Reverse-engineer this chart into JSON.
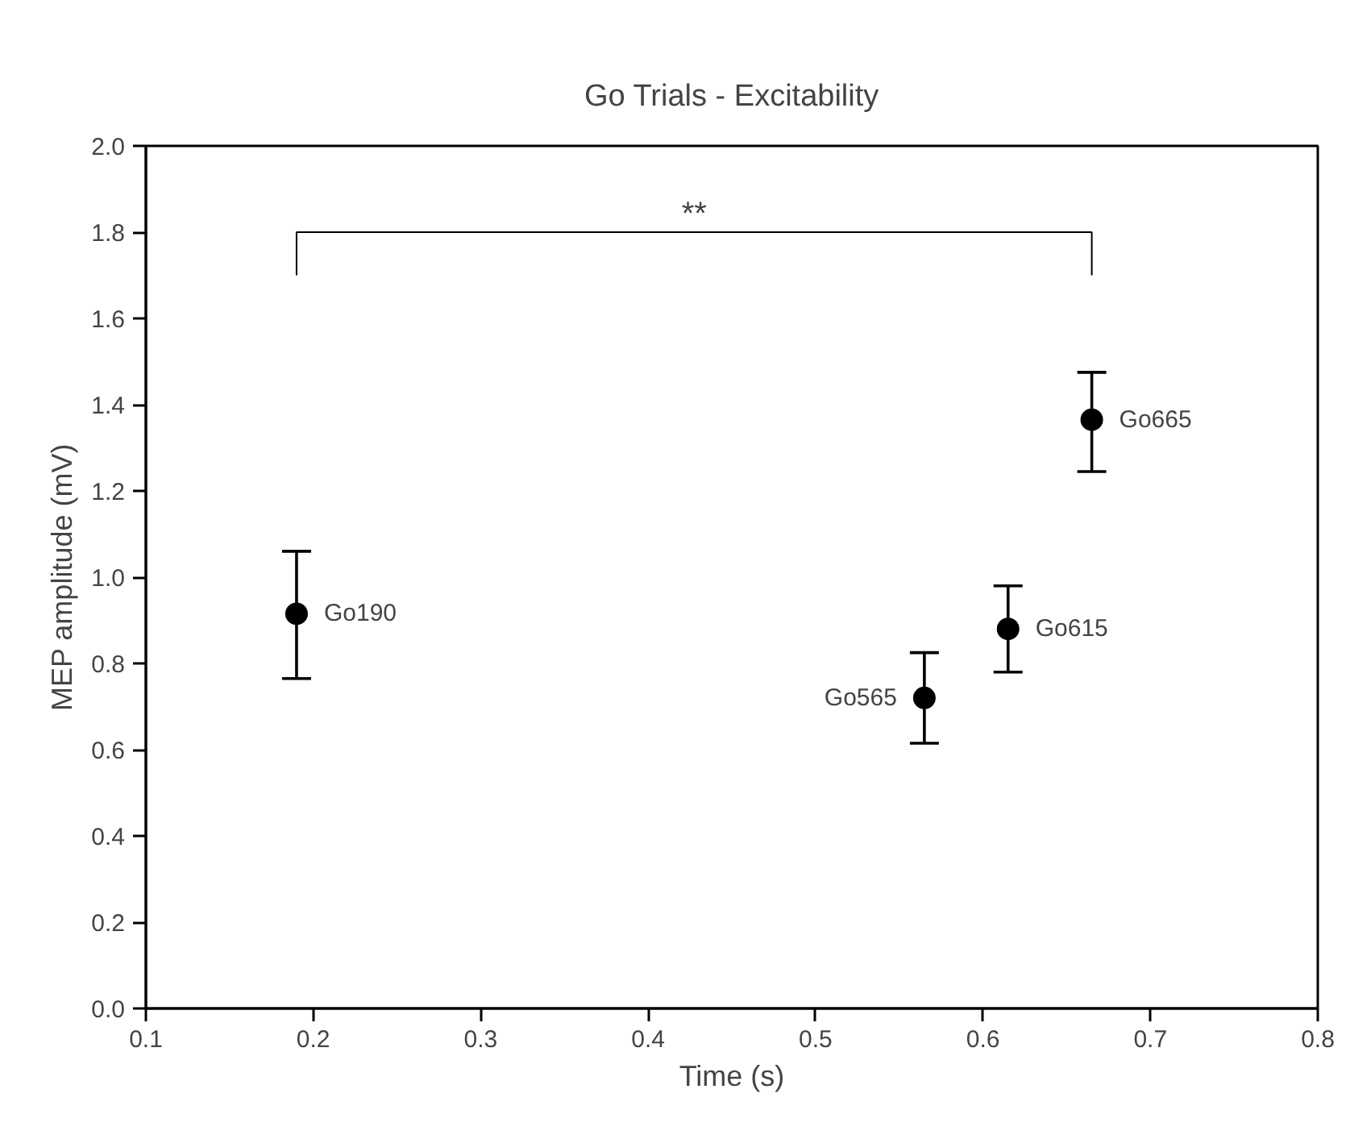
{
  "chart_data": {
    "type": "scatter",
    "title": "Go Trials - Excitability",
    "xlabel": "Time (s)",
    "ylabel": "MEP amplitude (mV)",
    "x": [
      0.19,
      0.565,
      0.615,
      0.665
    ],
    "series": [
      {
        "color": "#000000",
        "values": [
          0.915,
          0.72,
          0.88,
          1.365
        ],
        "errors": [
          [
            0.765,
            1.06
          ],
          [
            0.615,
            0.825
          ],
          [
            0.78,
            0.98
          ],
          [
            1.245,
            1.475
          ]
        ]
      }
    ],
    "marker": "circle",
    "grid": false,
    "xlim": [
      0.1,
      0.8
    ],
    "xticks": [
      0.1,
      0.2,
      0.3,
      0.4,
      0.5,
      0.6,
      0.7,
      0.8
    ],
    "ylim": [
      0.0,
      2.0
    ],
    "yticks": [
      {
        "value": 0.0,
        "label": "0.0"
      },
      0.2,
      0.4,
      0.6,
      0.8,
      {
        "value": 1.0,
        "label": "1.0"
      },
      1.2,
      1.4,
      1.6,
      1.8,
      {
        "value": 2.0,
        "label": "2.0"
      }
    ],
    "annotations": [
      {
        "text": "Go190",
        "x": 0.19,
        "y": 0.915
      },
      {
        "text": "Go565",
        "x": 0.565,
        "y": 0.72
      },
      {
        "text": "Go615",
        "x": 0.615,
        "y": 0.88
      },
      {
        "text": "Go665",
        "x": 0.665,
        "y": 1.365
      },
      "**"
    ]
  }
}
